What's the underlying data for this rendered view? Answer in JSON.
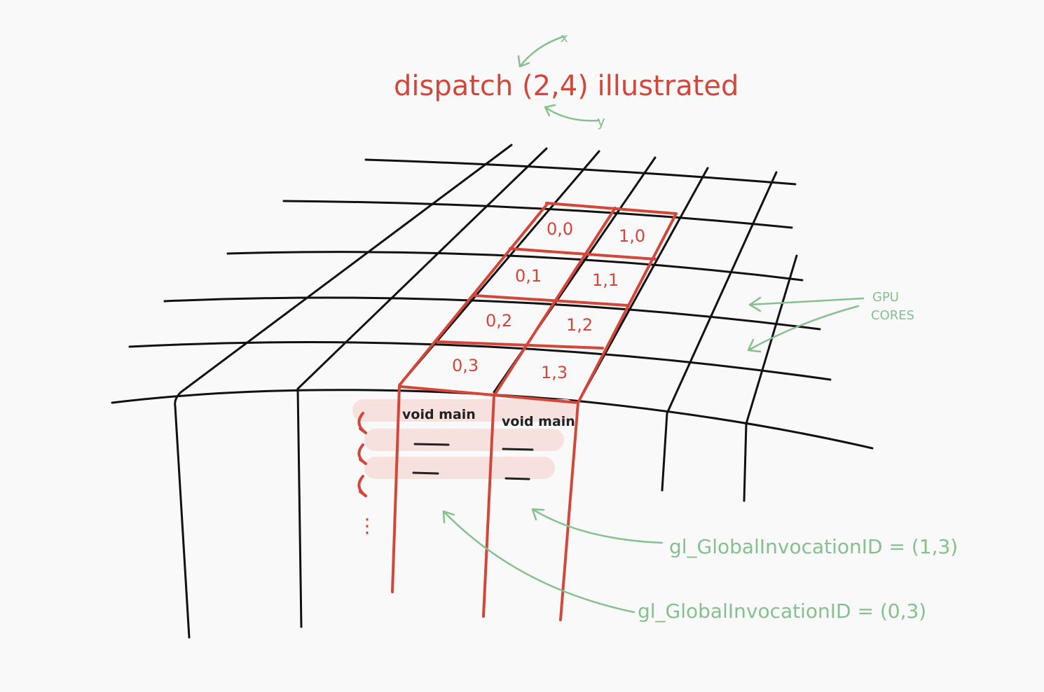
{
  "title": {
    "text": "dispatch (2,4) illustrated",
    "x_label": "x",
    "y_label": "y"
  },
  "cells": [
    "0,0",
    "1,0",
    "0,1",
    "1,1",
    "0,2",
    "1,2",
    "0,3",
    "1,3"
  ],
  "code": {
    "left": "void main",
    "right": "void main",
    "ellipsis": "⋮"
  },
  "annotations": {
    "gpu_cores": [
      "GPU",
      "CORES"
    ],
    "invocation_right": "gl_GlobalInvocationID = (1,3)",
    "invocation_left": "gl_GlobalInvocationID = (0,3)"
  },
  "colors": {
    "ink": "#111111",
    "accent": "#d2473a",
    "annotation": "#86c08f",
    "highlight": "#f6e1df",
    "background": "#f9f9f9"
  }
}
